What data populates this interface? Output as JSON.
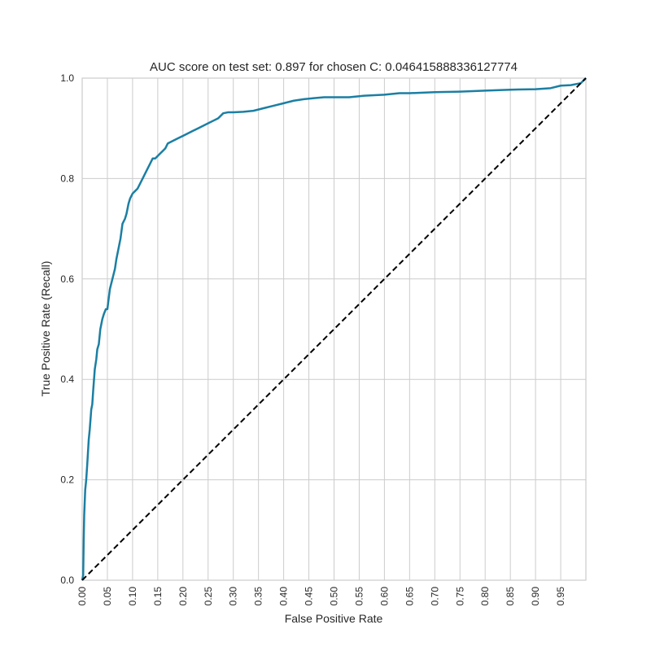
{
  "chart_data": {
    "type": "line",
    "title": "AUC score on test set: 0.897 for chosen C: 0.046415888336127774",
    "xlabel": "False Positive Rate",
    "ylabel": "True Positive Rate (Recall)",
    "xlim": [
      0.0,
      1.0
    ],
    "ylim": [
      0.0,
      1.0
    ],
    "grid": true,
    "xticks": [
      "0.00",
      "0.05",
      "0.10",
      "0.15",
      "0.20",
      "0.25",
      "0.30",
      "0.35",
      "0.40",
      "0.45",
      "0.50",
      "0.55",
      "0.60",
      "0.65",
      "0.70",
      "0.75",
      "0.80",
      "0.85",
      "0.90",
      "0.95"
    ],
    "yticks": [
      "0.0",
      "0.2",
      "0.4",
      "0.6",
      "0.8",
      "1.0"
    ],
    "colors": {
      "roc": "#1b7fa3",
      "diagonal": "#000000",
      "grid": "#cccccc"
    },
    "series": [
      {
        "style": "solid",
        "x": [
          0.0,
          0.002,
          0.003,
          0.004,
          0.006,
          0.008,
          0.01,
          0.013,
          0.015,
          0.018,
          0.02,
          0.022,
          0.025,
          0.028,
          0.03,
          0.033,
          0.036,
          0.04,
          0.043,
          0.047,
          0.05,
          0.055,
          0.06,
          0.065,
          0.068,
          0.072,
          0.076,
          0.08,
          0.085,
          0.088,
          0.092,
          0.095,
          0.1,
          0.105,
          0.11,
          0.115,
          0.12,
          0.125,
          0.13,
          0.135,
          0.14,
          0.145,
          0.15,
          0.155,
          0.16,
          0.165,
          0.17,
          0.18,
          0.19,
          0.2,
          0.21,
          0.22,
          0.23,
          0.24,
          0.25,
          0.26,
          0.27,
          0.28,
          0.29,
          0.3,
          0.32,
          0.34,
          0.36,
          0.38,
          0.4,
          0.42,
          0.44,
          0.46,
          0.48,
          0.5,
          0.53,
          0.56,
          0.6,
          0.63,
          0.65,
          0.7,
          0.75,
          0.8,
          0.85,
          0.9,
          0.93,
          0.95,
          0.97,
          0.99,
          1.0
        ],
        "y": [
          0.0,
          0.01,
          0.08,
          0.13,
          0.18,
          0.2,
          0.23,
          0.28,
          0.3,
          0.34,
          0.35,
          0.38,
          0.42,
          0.44,
          0.46,
          0.47,
          0.5,
          0.52,
          0.53,
          0.54,
          0.54,
          0.58,
          0.6,
          0.62,
          0.64,
          0.66,
          0.68,
          0.71,
          0.72,
          0.73,
          0.75,
          0.76,
          0.77,
          0.775,
          0.78,
          0.79,
          0.8,
          0.81,
          0.82,
          0.83,
          0.84,
          0.84,
          0.845,
          0.85,
          0.855,
          0.86,
          0.87,
          0.875,
          0.88,
          0.885,
          0.89,
          0.895,
          0.9,
          0.905,
          0.91,
          0.915,
          0.92,
          0.93,
          0.932,
          0.932,
          0.933,
          0.935,
          0.94,
          0.945,
          0.95,
          0.955,
          0.958,
          0.96,
          0.962,
          0.962,
          0.962,
          0.965,
          0.967,
          0.97,
          0.97,
          0.972,
          0.973,
          0.975,
          0.977,
          0.978,
          0.98,
          0.985,
          0.986,
          0.99,
          1.0
        ]
      },
      {
        "style": "dashed",
        "x": [
          0.0,
          1.0
        ],
        "y": [
          0.0,
          1.0
        ]
      }
    ]
  }
}
